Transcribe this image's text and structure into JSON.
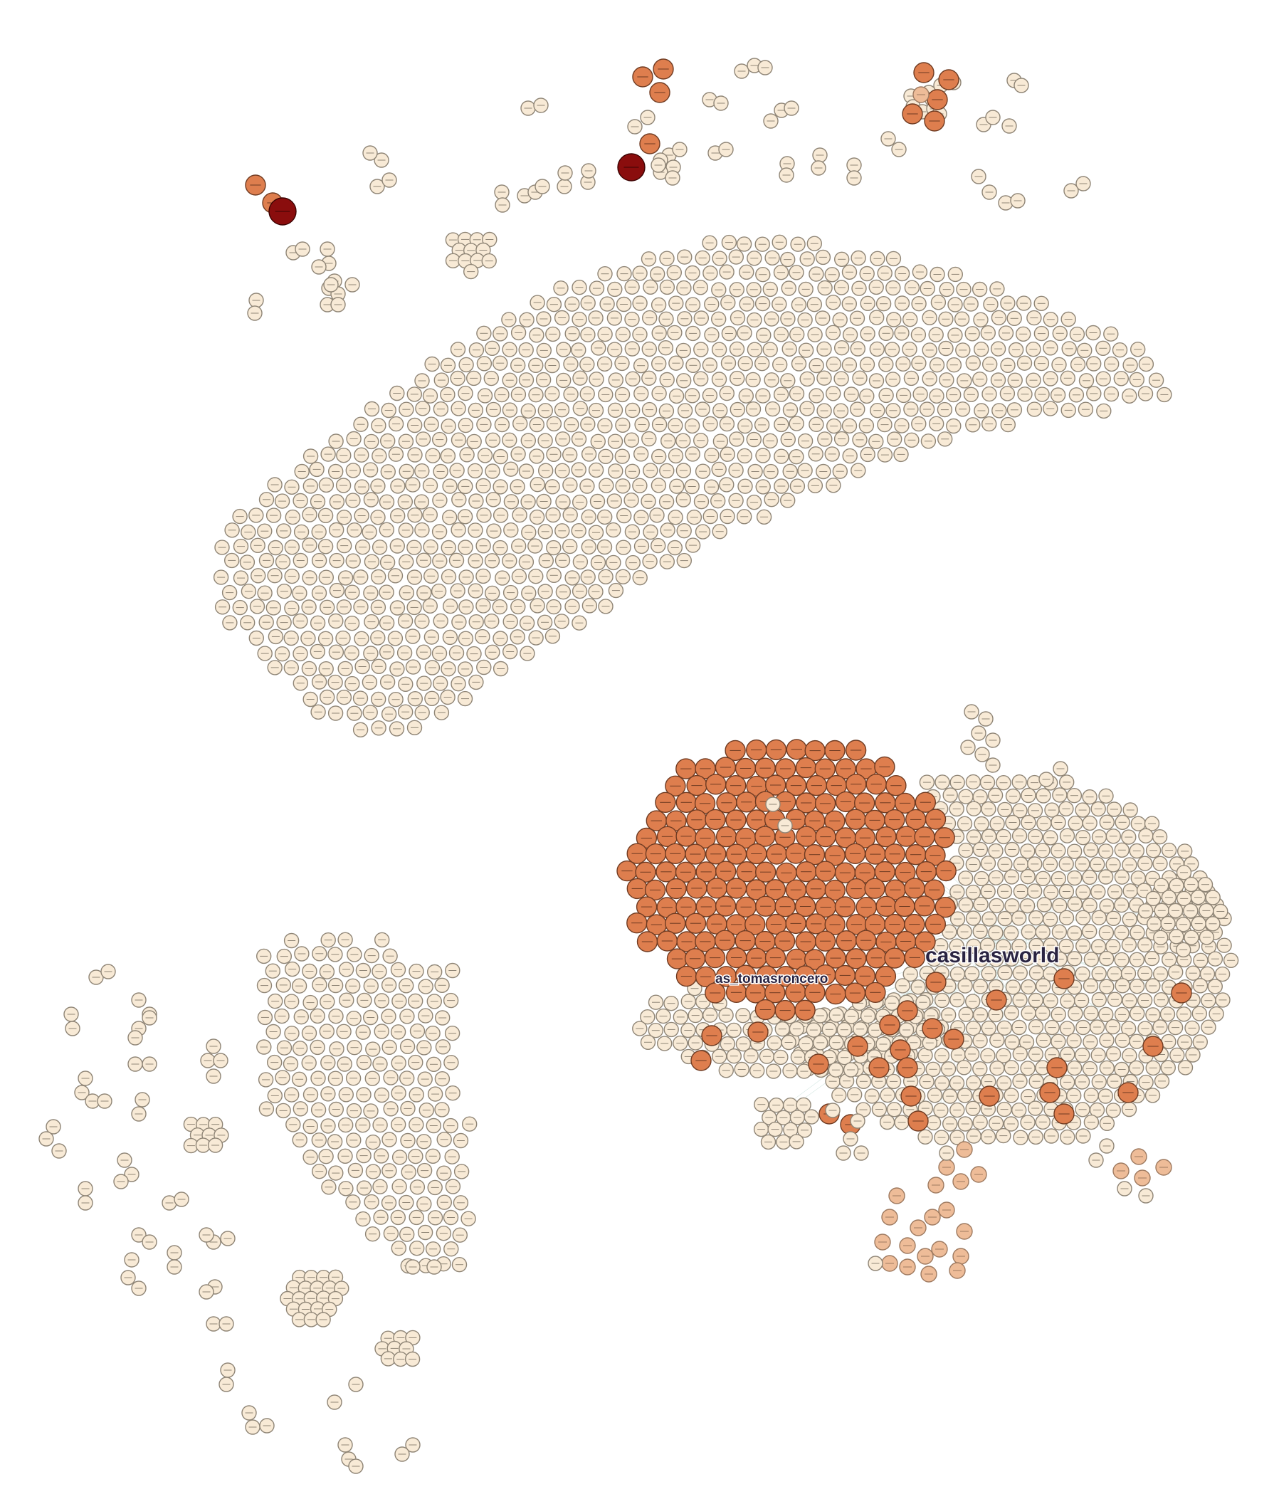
{
  "palette": {
    "background": "#ffffff",
    "node_small_fill": "#f8ead6",
    "node_small_stroke": "#8f8576",
    "node_light_fill": "#eebc98",
    "node_light_stroke": "#9e7a60",
    "node_orange_fill": "#de7e4e",
    "node_orange_stroke": "#6f3b22",
    "node_dark_fill": "#8a0d0d",
    "node_dark_stroke": "#3a0303",
    "edge_color": "#b7d7cf",
    "label_color": "#2a2442"
  },
  "labels": {
    "hub_primary": "casillasworld",
    "hub_secondary": "as_tomasroncero"
  },
  "clusters": {
    "banana": {
      "node_style": "small",
      "approx_node_count": 900
    },
    "lower_right_orange_group": {
      "node_style": "orange",
      "approx_node_count": 110
    },
    "lower_right_beige_group": {
      "node_style": "small",
      "approx_node_count": 600
    },
    "lower_left_group": {
      "node_style": "small",
      "approx_node_count": 150
    },
    "scattered_pairs": {
      "node_style": "small"
    },
    "top_orange_triads": {
      "node_style": "orange"
    },
    "top_dark_nodes": {
      "node_style": "dark",
      "count": 2
    }
  }
}
